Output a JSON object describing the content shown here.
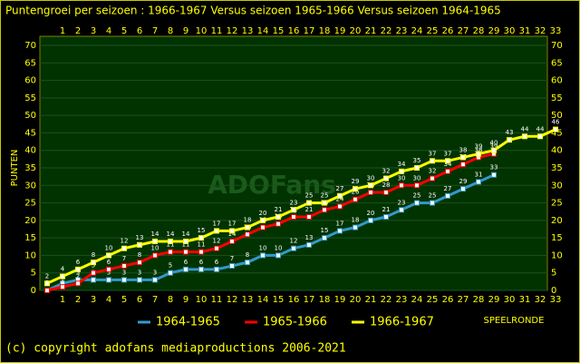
{
  "chart_data": {
    "type": "line",
    "title": "Puntengroei per seizoen : 1966-1967 Versus seizoen 1965-1966 Versus seizoen 1964-1965",
    "ylabel": "PUNTEN",
    "xlabel": "SPEELRONDE",
    "watermark": "ADOFans",
    "footer": "(c) copyright adofans mediaproductions 2006-2021",
    "categories": [
      null,
      1,
      2,
      3,
      4,
      5,
      6,
      7,
      8,
      9,
      10,
      11,
      12,
      13,
      14,
      15,
      16,
      17,
      18,
      19,
      20,
      21,
      22,
      23,
      24,
      25,
      26,
      27,
      28,
      29,
      30,
      31,
      32,
      33
    ],
    "series": [
      {
        "name": "1964-1965",
        "color": "#3399cc",
        "values": [
          0,
          2,
          3,
          3,
          3,
          3,
          3,
          3,
          5,
          6,
          6,
          6,
          7,
          8,
          10,
          10,
          12,
          13,
          15,
          17,
          18,
          20,
          21,
          23,
          25,
          25,
          27,
          29,
          31,
          33,
          null,
          null,
          null,
          null
        ]
      },
      {
        "name": "1965-1966",
        "color": "#ff0000",
        "values": [
          0,
          1,
          2,
          5,
          6,
          7,
          8,
          10,
          11,
          11,
          11,
          12,
          14,
          16,
          18,
          19,
          21,
          21,
          23,
          24,
          26,
          28,
          28,
          30,
          30,
          32,
          34,
          36,
          38,
          39,
          null,
          null,
          null,
          null
        ]
      },
      {
        "name": "1966-1967",
        "color": "#ffff00",
        "values": [
          2,
          4,
          6,
          8,
          10,
          12,
          13,
          14,
          14,
          14,
          15,
          17,
          17,
          18,
          20,
          21,
          23,
          25,
          25,
          27,
          29,
          30,
          32,
          34,
          35,
          37,
          37,
          38,
          39,
          40,
          43,
          44,
          44,
          46
        ]
      }
    ],
    "ylim": [
      0,
      70
    ],
    "yticks": [
      0,
      5,
      10,
      15,
      20,
      25,
      30,
      35,
      40,
      45,
      50,
      55,
      60,
      65,
      70
    ],
    "grid": true
  }
}
